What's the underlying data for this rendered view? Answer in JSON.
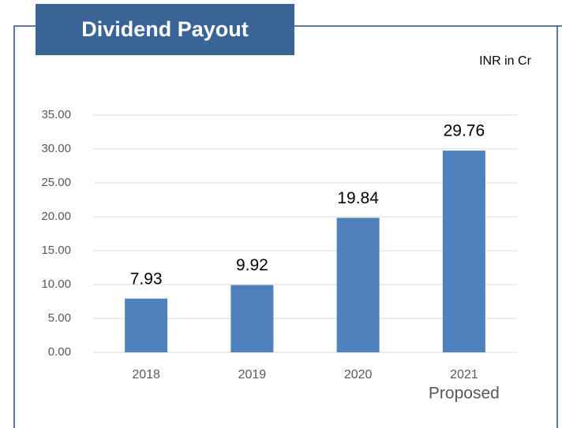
{
  "chart_data": {
    "type": "bar",
    "title": "Dividend Payout",
    "unit_label": "INR in Cr",
    "categories": [
      "2018",
      "2019",
      "2020",
      "2021"
    ],
    "annotation": "Proposed",
    "values": [
      7.93,
      9.92,
      19.84,
      29.76
    ],
    "color": "#4f81bd",
    "ylim": [
      0,
      35
    ],
    "yticks": [
      {
        "value": 0,
        "label": "0.00"
      },
      {
        "value": 5,
        "label": "5.00"
      },
      {
        "value": 10,
        "label": "10.00"
      },
      {
        "value": 15,
        "label": "15.00"
      },
      {
        "value": 20,
        "label": "20.00"
      },
      {
        "value": 25,
        "label": "25.00"
      },
      {
        "value": 30,
        "label": "30.00"
      },
      {
        "value": 35,
        "label": "35.00"
      }
    ],
    "grid": true
  }
}
